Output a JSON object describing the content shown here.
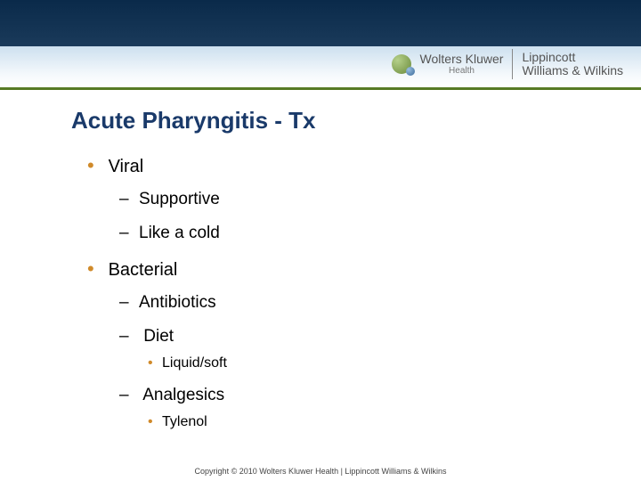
{
  "header": {
    "brand_left_top": "Wolters Kluwer",
    "brand_left_bottom": "Health",
    "brand_right_top": "Lippincott",
    "brand_right_bottom": "Williams & Wilkins",
    "colors": {
      "dark_band": "#0a2a4a",
      "light_band_top": "#cde0ef",
      "light_band_bottom": "#ffffff",
      "accent_line": "#567a24"
    }
  },
  "title": "Acute Pharyngitis - Tx",
  "title_color": "#1a3a6a",
  "bullet_color": "#d08a2a",
  "items": [
    {
      "label": "Viral",
      "children": [
        {
          "label": "Supportive"
        },
        {
          "label": "Like a cold"
        }
      ]
    },
    {
      "label": "Bacterial",
      "children": [
        {
          "label": "Antibiotics"
        },
        {
          "label": "Diet",
          "children": [
            {
              "label": "Liquid/soft"
            }
          ]
        },
        {
          "label": "Analgesics",
          "children": [
            {
              "label": "Tylenol"
            }
          ]
        }
      ]
    }
  ],
  "copyright": "Copyright © 2010 Wolters Kluwer Health | Lippincott Williams & Wilkins",
  "fontsizes": {
    "title": 26,
    "lvl1": 20,
    "lvl2": 19,
    "lvl3": 16,
    "copyright": 9
  }
}
